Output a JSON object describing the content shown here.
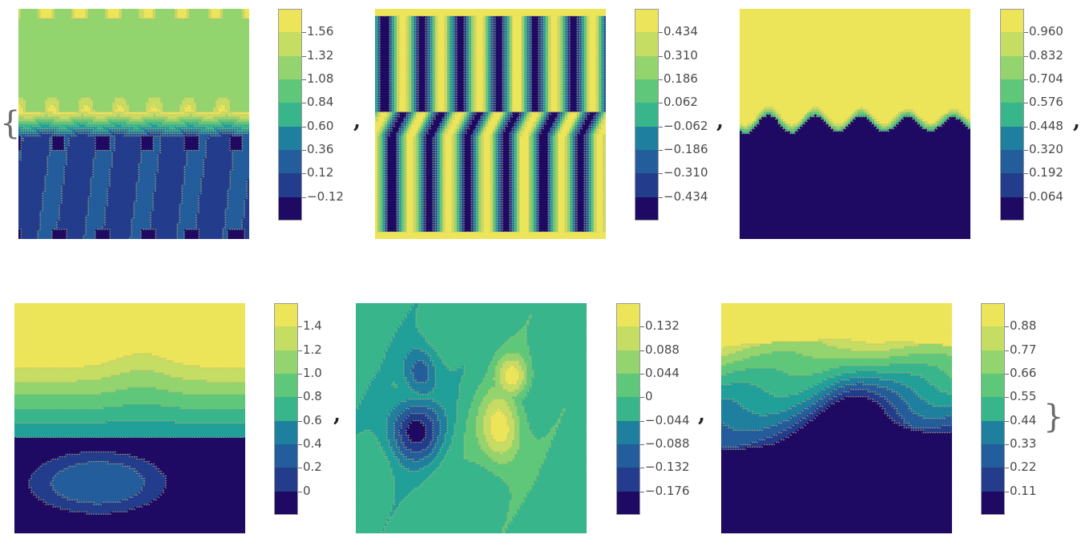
{
  "brackets": {
    "open": "{",
    "close": "}"
  },
  "separator": ",",
  "palette": [
    "#1e0a63",
    "#233c8c",
    "#245d9b",
    "#1f7f9e",
    "#219f99",
    "#38b58b",
    "#5ec779",
    "#93d46e",
    "#c6dd64",
    "#ece55a"
  ],
  "line_color": "#c9b56e",
  "chart_data": [
    {
      "type": "heatmap",
      "name": "panel-1",
      "tick_labels": [
        "1.56",
        "1.32",
        "1.08",
        "0.84",
        "0.60",
        "0.36",
        "0.12",
        "−0.12"
      ],
      "range": [
        -0.24,
        1.68
      ],
      "field": "fingers-top"
    },
    {
      "type": "heatmap",
      "name": "panel-2",
      "tick_labels": [
        "0.434",
        "0.310",
        "0.186",
        "0.062",
        "−0.062",
        "−0.186",
        "−0.310",
        "−0.434"
      ],
      "range": [
        -0.496,
        0.496
      ],
      "field": "vertical-bands"
    },
    {
      "type": "heatmap",
      "name": "panel-3",
      "tick_labels": [
        "0.960",
        "0.832",
        "0.704",
        "0.576",
        "0.448",
        "0.320",
        "0.192",
        "0.064"
      ],
      "range": [
        0.0,
        1.024
      ],
      "field": "wavy-interface"
    },
    {
      "type": "heatmap",
      "name": "panel-4",
      "tick_labels": [
        "1.4",
        "1.2",
        "1.0",
        "0.8",
        "0.6",
        "0.4",
        "0.2",
        "0"
      ],
      "range": [
        -0.1,
        1.5
      ],
      "field": "layered-blob"
    },
    {
      "type": "heatmap",
      "name": "panel-5",
      "tick_labels": [
        "0.132",
        "0.088",
        "0.044",
        "0",
        "−0.044",
        "−0.088",
        "−0.132",
        "−0.176"
      ],
      "range": [
        -0.198,
        0.154
      ],
      "field": "vortex-pair"
    },
    {
      "type": "heatmap",
      "name": "panel-6",
      "tick_labels": [
        "0.88",
        "0.77",
        "0.66",
        "0.55",
        "0.44",
        "0.33",
        "0.22",
        "0.11"
      ],
      "range": [
        0.055,
        0.99
      ],
      "field": "sloped-interface"
    }
  ]
}
